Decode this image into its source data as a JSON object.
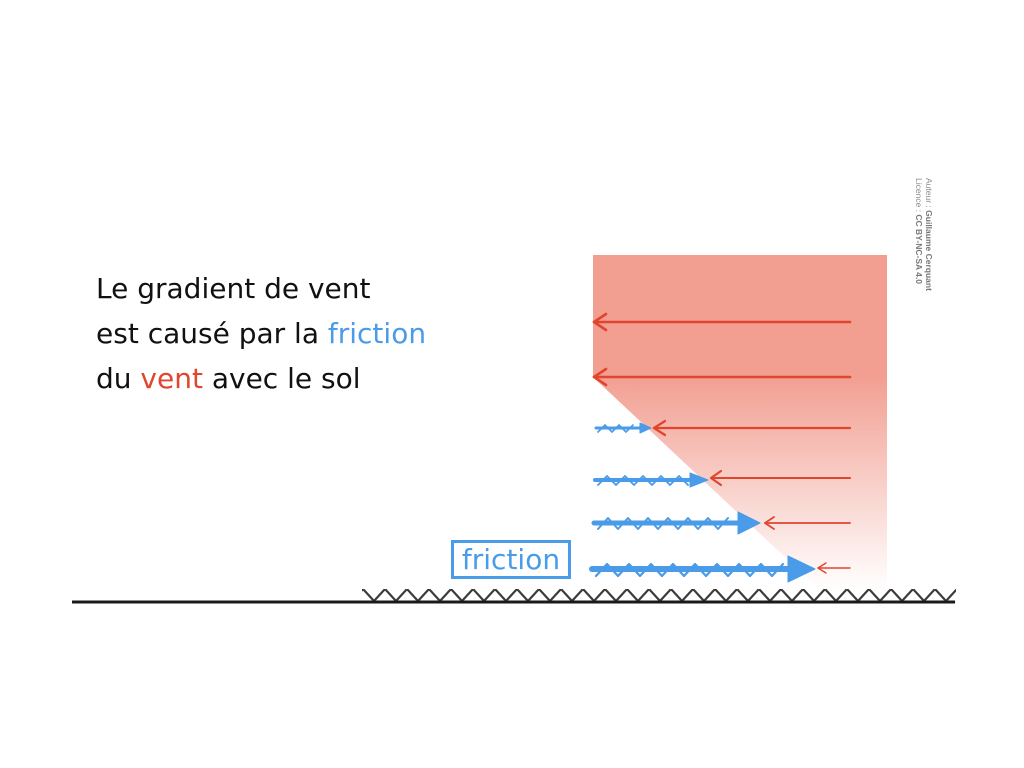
{
  "caption": {
    "line1": "Le gradient de vent",
    "line2_prefix": "est causé par la ",
    "line2_highlight": "friction",
    "line3_prefix": "du ",
    "line3_highlight": "vent",
    "line3_suffix": " avec le sol"
  },
  "friction_box": {
    "label": "friction"
  },
  "credit": {
    "author_label": "Auteur :",
    "author_name": "Guillaume Cerquant",
    "licence_label": "Licence :",
    "licence_name": "CC BY-NC-SA 4.0"
  },
  "colors": {
    "wind": "#e0452e",
    "friction": "#4a9be8",
    "shading": "#f19a8c",
    "text": "#111111",
    "ground": "#1a1a1a"
  }
}
